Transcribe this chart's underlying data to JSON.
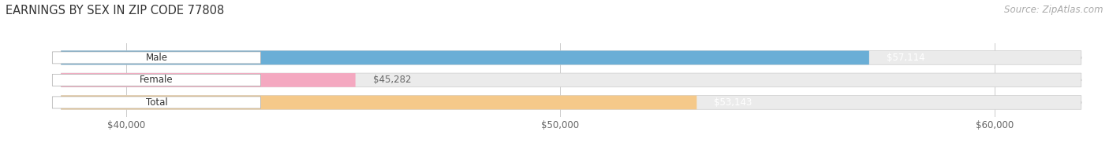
{
  "title": "EARNINGS BY SEX IN ZIP CODE 77808",
  "source": "Source: ZipAtlas.com",
  "categories": [
    "Male",
    "Female",
    "Total"
  ],
  "values": [
    57114,
    45282,
    53143
  ],
  "colors": [
    "#6aaed6",
    "#f4a8c0",
    "#f5c98a"
  ],
  "value_label_colors": [
    "white",
    "#666666",
    "white"
  ],
  "bar_labels": [
    "$57,114",
    "$45,282",
    "$53,143"
  ],
  "xlim": [
    38500,
    62000
  ],
  "xticks": [
    40000,
    50000,
    60000
  ],
  "xtick_labels": [
    "$40,000",
    "$50,000",
    "$60,000"
  ],
  "bar_background_color": "#ebebeb",
  "title_fontsize": 10.5,
  "source_fontsize": 8.5,
  "bar_height": 0.62,
  "figsize": [
    14.06,
    1.96
  ],
  "dpi": 100
}
